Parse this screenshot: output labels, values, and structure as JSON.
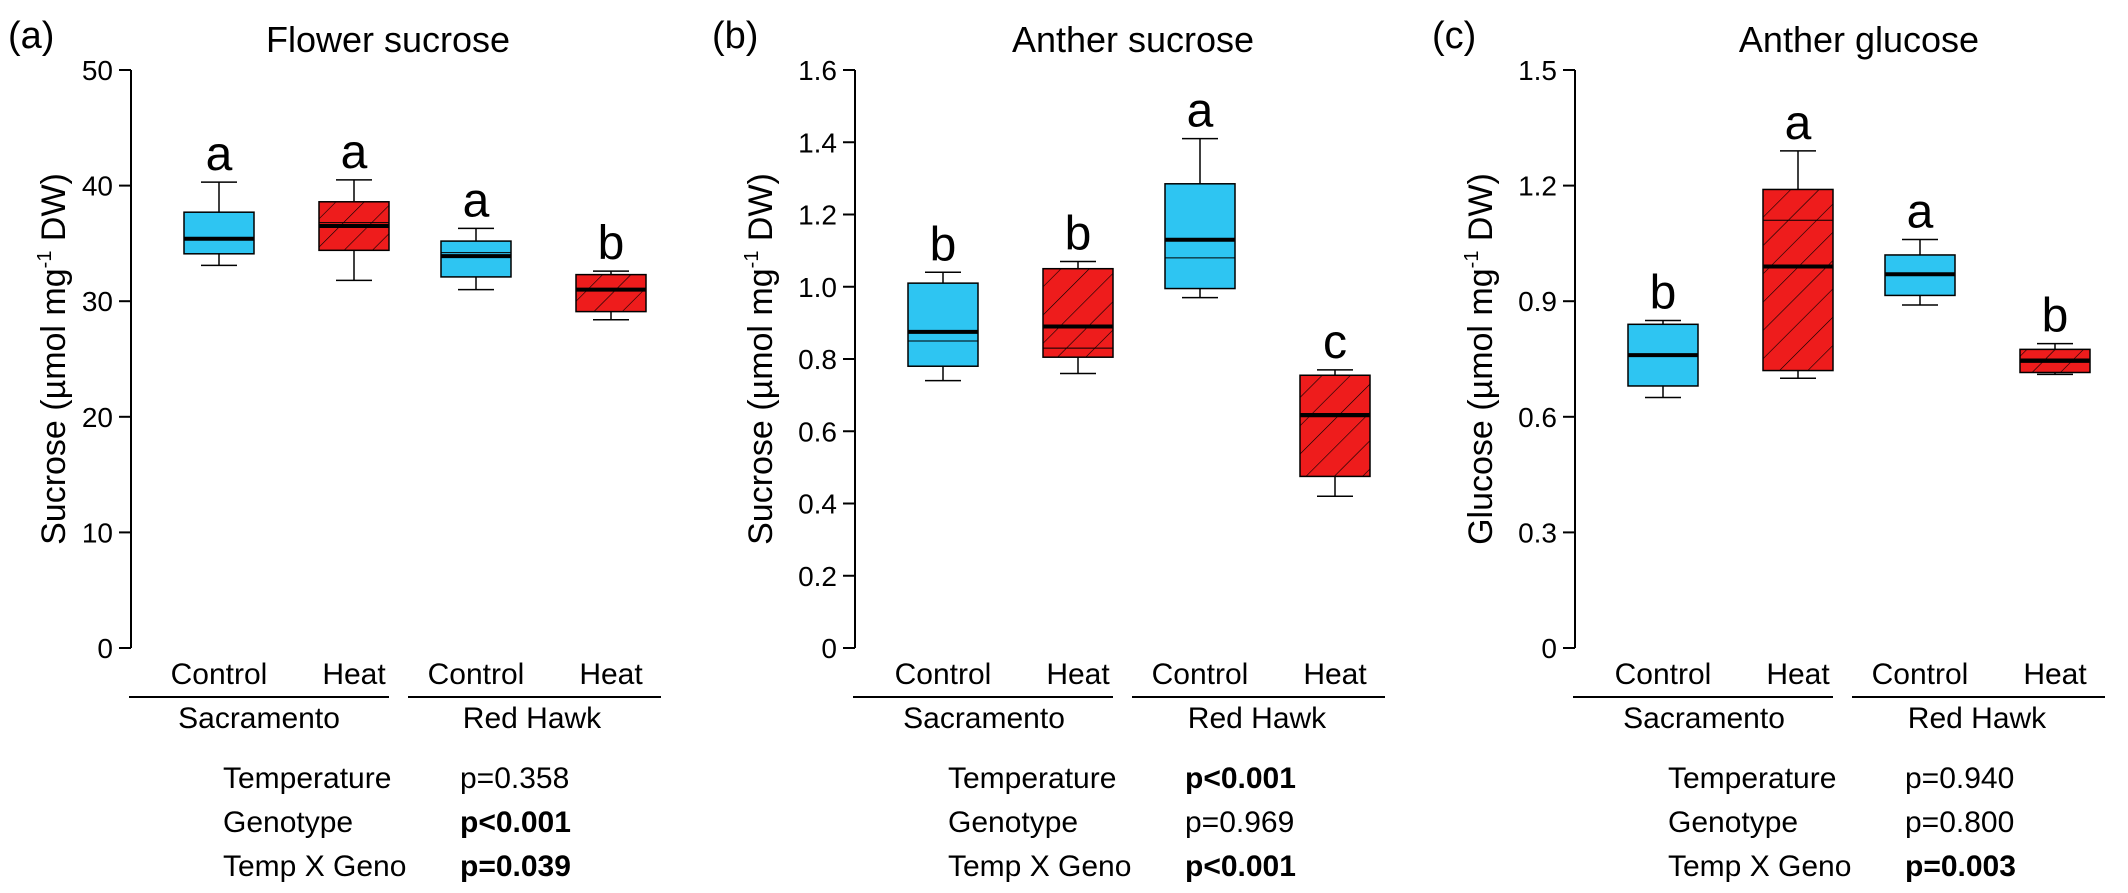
{
  "colors": {
    "control": "#2EC5F2",
    "heat": "#EE1C1C",
    "stroke": "#000000"
  },
  "chart_data": [
    {
      "type": "box",
      "tag": "(a)",
      "title": "Flower sucrose",
      "ylabel_main": "Sucrose (µmol mg",
      "ylabel_sup": "-1",
      "ylabel_end": " DW)",
      "ylim": [
        0,
        50
      ],
      "yticks": [
        "0",
        "10",
        "20",
        "30",
        "40",
        "50"
      ],
      "categories": [
        "Control",
        "Heat",
        "Control",
        "Heat"
      ],
      "groups": [
        "Sacramento",
        "Red Hawk"
      ],
      "boxes": [
        {
          "category": "Control",
          "group": "Sacramento",
          "treatment": "control",
          "min": 33.1,
          "q1": 34.1,
          "median": 35.4,
          "mean": 35.5,
          "q3": 37.7,
          "max": 40.3,
          "letter": "a"
        },
        {
          "category": "Heat",
          "group": "Sacramento",
          "treatment": "heat",
          "min": 31.8,
          "q1": 34.4,
          "median": 36.5,
          "mean": 36.8,
          "q3": 38.6,
          "max": 40.5,
          "letter": "a"
        },
        {
          "category": "Control",
          "group": "Red Hawk",
          "treatment": "control",
          "min": 31.0,
          "q1": 32.1,
          "median": 33.9,
          "mean": 34.2,
          "q3": 35.2,
          "max": 36.3,
          "letter": "a"
        },
        {
          "category": "Heat",
          "group": "Red Hawk",
          "treatment": "heat",
          "min": 28.4,
          "q1": 29.1,
          "median": 31.0,
          "mean": 31.0,
          "q3": 32.3,
          "max": 32.6,
          "letter": "b"
        }
      ],
      "stats": [
        {
          "label": "Temperature",
          "value": "p=0.358",
          "bold": false
        },
        {
          "label": "Genotype",
          "value": "p<0.001",
          "bold": true
        },
        {
          "label": "Temp X Geno",
          "value": "p=0.039",
          "bold": true
        }
      ]
    },
    {
      "type": "box",
      "tag": "(b)",
      "title": "Anther sucrose",
      "ylabel_main": "Sucrose (µmol mg",
      "ylabel_sup": "-1",
      "ylabel_end": " DW)",
      "ylim": [
        0,
        1.6
      ],
      "yticks": [
        "0",
        "0.2",
        "0.4",
        "0.6",
        "0.8",
        "1.0",
        "1.2",
        "1.4",
        "1.6"
      ],
      "categories": [
        "Control",
        "Heat",
        "Control",
        "Heat"
      ],
      "groups": [
        "Sacramento",
        "Red Hawk"
      ],
      "boxes": [
        {
          "category": "Control",
          "group": "Sacramento",
          "treatment": "control",
          "min": 0.74,
          "q1": 0.78,
          "median": 0.875,
          "mean": 0.85,
          "q3": 1.01,
          "max": 1.04,
          "letter": "b"
        },
        {
          "category": "Heat",
          "group": "Sacramento",
          "treatment": "heat",
          "min": 0.76,
          "q1": 0.805,
          "median": 0.89,
          "mean": 0.83,
          "q3": 1.05,
          "max": 1.07,
          "letter": "b"
        },
        {
          "category": "Control",
          "group": "Red Hawk",
          "treatment": "control",
          "min": 0.97,
          "q1": 0.995,
          "median": 1.13,
          "mean": 1.08,
          "q3": 1.285,
          "max": 1.41,
          "letter": "a"
        },
        {
          "category": "Heat",
          "group": "Red Hawk",
          "treatment": "heat",
          "min": 0.42,
          "q1": 0.475,
          "median": 0.645,
          "mean": 0.64,
          "q3": 0.755,
          "max": 0.77,
          "letter": "c"
        }
      ],
      "stats": [
        {
          "label": "Temperature",
          "value": "p<0.001",
          "bold": true
        },
        {
          "label": "Genotype",
          "value": "p=0.969",
          "bold": false
        },
        {
          "label": "Temp X Geno",
          "value": "p<0.001",
          "bold": true
        }
      ]
    },
    {
      "type": "box",
      "tag": "(c)",
      "title": "Anther glucose",
      "ylabel_main": "Glucose (µmol mg",
      "ylabel_sup": "-1",
      "ylabel_end": " DW)",
      "ylim": [
        0,
        1.5
      ],
      "yticks": [
        "0",
        "0.3",
        "0.6",
        "0.9",
        "1.2",
        "1.5"
      ],
      "categories": [
        "Control",
        "Heat",
        "Control",
        "Heat"
      ],
      "groups": [
        "Sacramento",
        "Red Hawk"
      ],
      "boxes": [
        {
          "category": "Control",
          "group": "Sacramento",
          "treatment": "control",
          "min": 0.65,
          "q1": 0.68,
          "median": 0.76,
          "mean": 0.76,
          "q3": 0.84,
          "max": 0.85,
          "letter": "b"
        },
        {
          "category": "Heat",
          "group": "Sacramento",
          "treatment": "heat",
          "min": 0.7,
          "q1": 0.72,
          "median": 0.99,
          "mean": 1.11,
          "q3": 1.19,
          "max": 1.29,
          "letter": "a"
        },
        {
          "category": "Control",
          "group": "Red Hawk",
          "treatment": "control",
          "min": 0.89,
          "q1": 0.915,
          "median": 0.97,
          "mean": 0.97,
          "q3": 1.02,
          "max": 1.06,
          "letter": "a"
        },
        {
          "category": "Heat",
          "group": "Red Hawk",
          "treatment": "heat",
          "min": 0.71,
          "q1": 0.715,
          "median": 0.745,
          "mean": 0.75,
          "q3": 0.775,
          "max": 0.79,
          "letter": "b"
        }
      ],
      "stats": [
        {
          "label": "Temperature",
          "value": "p=0.940",
          "bold": false
        },
        {
          "label": "Genotype",
          "value": "p=0.800",
          "bold": false
        },
        {
          "label": "Temp X Geno",
          "value": "p=0.003",
          "bold": true
        }
      ]
    }
  ]
}
